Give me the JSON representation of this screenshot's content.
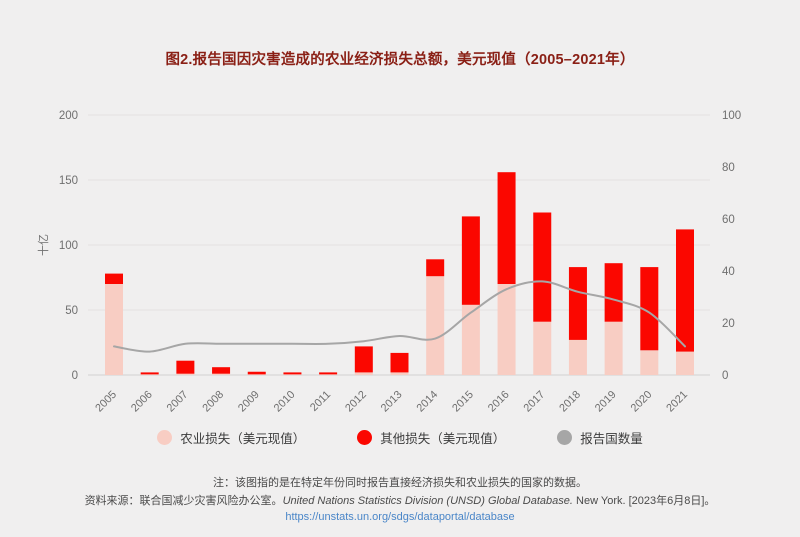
{
  "title": "图2.报告国因灾害造成的农业经济损失总额，美元现值（2005–2021年）",
  "chart_data": {
    "type": "bar",
    "stacked": true,
    "categories": [
      "2005",
      "2006",
      "2007",
      "2008",
      "2009",
      "2010",
      "2011",
      "2012",
      "2013",
      "2014",
      "2015",
      "2016",
      "2017",
      "2018",
      "2019",
      "2020",
      "2021"
    ],
    "series": [
      {
        "name": "农业损失（美元现值）",
        "kind": "bar",
        "axis": "left",
        "color": "#f8cdc3",
        "values": [
          70,
          0.5,
          1,
          1,
          0.5,
          0.5,
          0.5,
          2,
          2,
          76,
          54,
          70,
          41,
          27,
          41,
          19,
          18
        ]
      },
      {
        "name": "其他损失（美元现值）",
        "kind": "bar",
        "axis": "left",
        "color": "#fb0700",
        "values": [
          8,
          1.5,
          10,
          5,
          2,
          1.5,
          1.5,
          20,
          15,
          13,
          68,
          86,
          84,
          56,
          45,
          64,
          94
        ]
      },
      {
        "name": "报告国数量",
        "kind": "line",
        "axis": "right",
        "color": "#a6a6a6",
        "values": [
          11,
          9,
          12,
          12,
          12,
          12,
          12,
          13,
          15,
          14,
          24,
          33,
          36,
          32,
          29,
          24,
          11
        ]
      }
    ],
    "left_axis": {
      "label": "十亿",
      "ticks": [
        0,
        50,
        100,
        150,
        200
      ],
      "min": 0,
      "max": 200
    },
    "right_axis": {
      "ticks": [
        0,
        20,
        40,
        60,
        80,
        100
      ],
      "min": 0,
      "max": 100
    },
    "grid": true,
    "legend_position": "bottom"
  },
  "legend": {
    "items": [
      {
        "label": "农业损失（美元现值）",
        "color": "#f8cdc3"
      },
      {
        "label": "其他损失（美元现值）",
        "color": "#fb0700"
      },
      {
        "label": "报告国数量",
        "color": "#a6a6a6"
      }
    ]
  },
  "note": "注：该图指的是在特定年份同时报告直接经济损失和农业损失的国家的数据。",
  "source": {
    "prefix": "资料来源：联合国减少灾害风险办公室。",
    "italic": "United Nations Statistics Division (UNSD) Global Database.",
    "suffix": " New York. [2023年6月8日]。"
  },
  "link": "https://unstats.un.org/sdgs/dataportal/database",
  "colors": {
    "background": "#f0efef",
    "title": "#8a1f15",
    "gridline": "#e3e2e2",
    "baseline": "#d2d1d1",
    "tick_label": "#6f6f6f",
    "link": "#4a86c8"
  }
}
